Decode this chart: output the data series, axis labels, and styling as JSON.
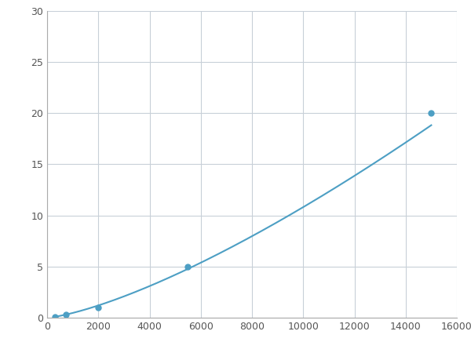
{
  "x": [
    300,
    750,
    2000,
    5500,
    15000
  ],
  "y": [
    0.1,
    0.3,
    1.0,
    5.0,
    20.0
  ],
  "line_color": "#4d9fc4",
  "marker_color": "#4d9fc4",
  "marker_size": 5,
  "line_width": 1.5,
  "xlim": [
    0,
    16000
  ],
  "ylim": [
    0,
    30
  ],
  "xticks": [
    0,
    2000,
    4000,
    6000,
    8000,
    10000,
    12000,
    14000,
    16000
  ],
  "yticks": [
    0,
    5,
    10,
    15,
    20,
    25,
    30
  ],
  "grid_color": "#c8d0d8",
  "background_color": "#ffffff",
  "figsize": [
    6.0,
    4.5
  ],
  "dpi": 100
}
